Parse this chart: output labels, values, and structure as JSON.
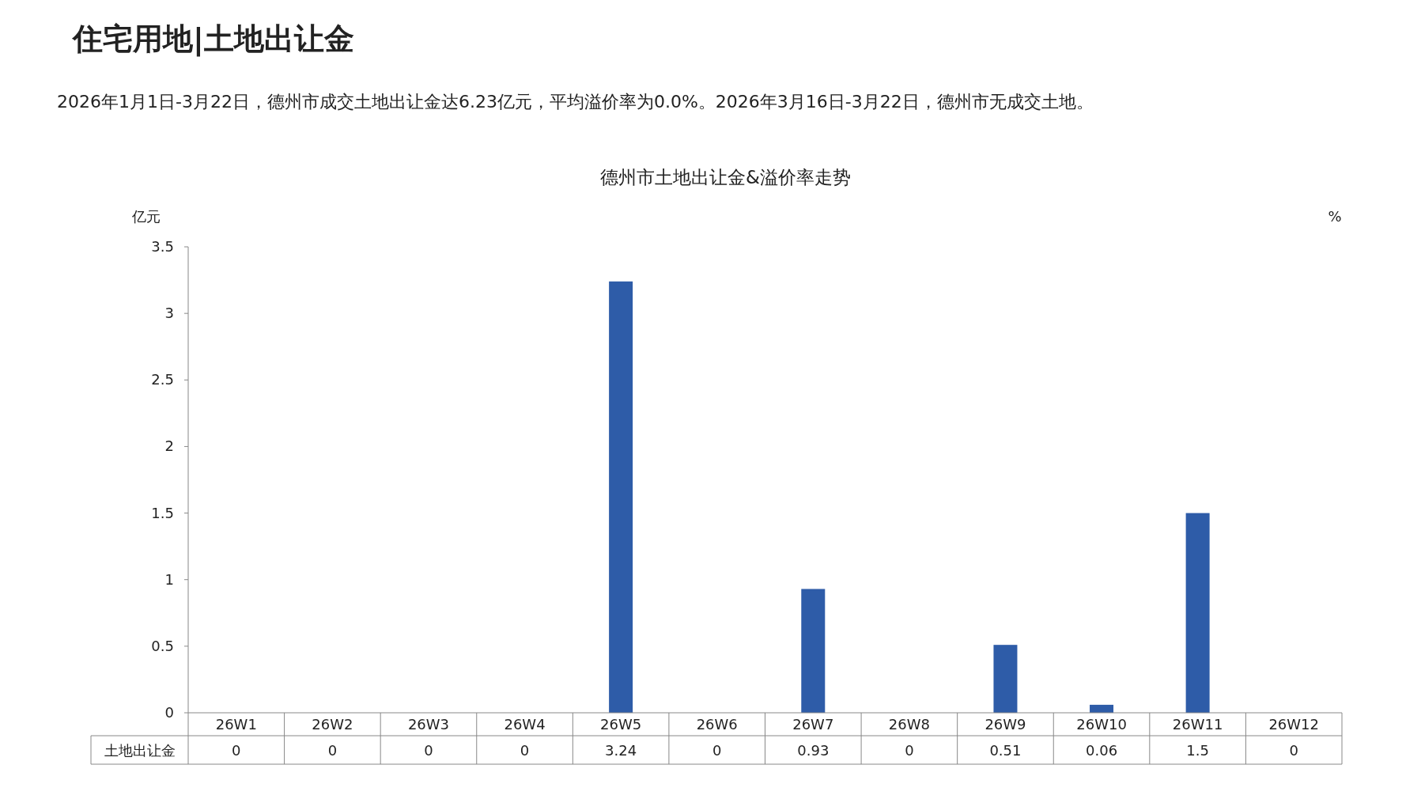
{
  "chart_data": {
    "type": "bar",
    "title": "德州市土地出让金&溢价率走势",
    "annotations": [
      "住宅用地|土地出让金",
      "2026年1月1日-3月22日，德州市成交土地出让金达6.23亿元，平均溢价率为0.0%。2026年3月16日-3月22日，德州市无成交土地。"
    ],
    "ylabel": "亿元",
    "y2label": "%",
    "categories": [
      "26W1",
      "26W2",
      "26W3",
      "26W4",
      "26W5",
      "26W6",
      "26W7",
      "26W8",
      "26W9",
      "26W10",
      "26W11",
      "26W12"
    ],
    "series": [
      {
        "name": "土地出让金",
        "color": "#2e5ca8",
        "values": [
          0,
          0,
          0,
          0,
          3.24,
          0,
          0.93,
          0,
          0.51,
          0.06,
          1.5,
          0
        ]
      }
    ],
    "ylim": [
      0,
      3.5
    ],
    "yticks": [
      0,
      0.5,
      1,
      1.5,
      2,
      2.5,
      3,
      3.5
    ],
    "data_labels": true,
    "grid": false,
    "legend": false
  }
}
